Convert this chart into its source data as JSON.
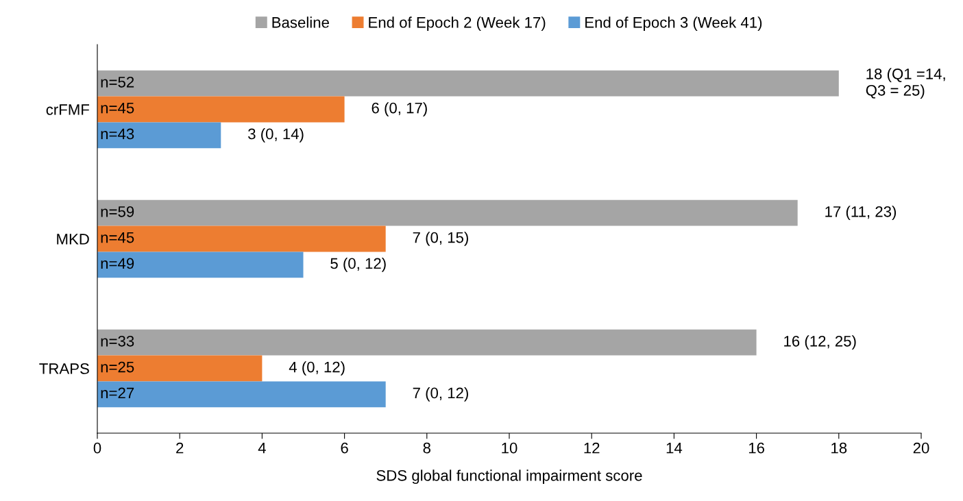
{
  "chart_data": {
    "type": "bar",
    "orientation": "horizontal",
    "xlabel": "SDS global functional impairment score",
    "categories": [
      "crFMF",
      "MKD",
      "TRAPS"
    ],
    "series": [
      {
        "name": "Baseline",
        "color": "#a5a5a5",
        "values": [
          18,
          17,
          16
        ],
        "value_labels": [
          "18 (Q1 =14,\nQ3 = 25)",
          "17 (11, 23)",
          "16 (12, 25)"
        ]
      },
      {
        "name": "End of Epoch 2 (Week 17)",
        "color": "#ed7d31",
        "values": [
          6,
          7,
          4
        ],
        "value_labels": [
          "6 (0, 17)",
          "7 (0, 15)",
          "4 (0, 12)"
        ]
      },
      {
        "name": "End of Epoch 3 (Week 41)",
        "color": "#5b9bd5",
        "values": [
          3,
          5,
          7
        ],
        "value_labels": [
          "3 (0, 14)",
          "5 (0, 12)",
          "7 (0, 12)"
        ]
      }
    ],
    "annotations": [
      "n=52",
      "n=45",
      "n=43",
      "n=59",
      "n=45",
      "n=49",
      "n=33",
      "n=25",
      "n=27"
    ],
    "xlim": [
      0,
      20
    ],
    "xticks": [
      0,
      2,
      4,
      6,
      8,
      10,
      12,
      14,
      16,
      18,
      20
    ],
    "legend": "top",
    "grid": false
  }
}
